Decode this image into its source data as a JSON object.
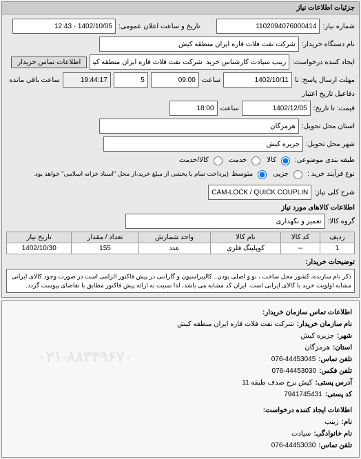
{
  "panel": {
    "title": "جزئیات اطلاعات نیاز"
  },
  "form": {
    "request_no_label": "شماره نیاز:",
    "request_no": "1102094076000414",
    "announce_label": "تاریخ و ساعت اعلان عمومی:",
    "announce_value": "1402/10/05 - 12:43",
    "buyer_org_label": "نام دستگاه خریدار:",
    "buyer_org": "شرکت نفت فلات قاره ایران منطقه کیش",
    "requester_label": "ایجاد کننده درخواست:",
    "requester": "زینب سیادت کارشناس خرید  شرکت نفت قلات قاره ایران منطقه کیش",
    "contact_btn": "اطلاعات تماس خریدار",
    "deadline_label": "مهلت ارسال پاسخ: تا",
    "deadline_date": "1402/10/11",
    "time_label": "ساعت",
    "deadline_time": "09:00",
    "remain_hours": "5",
    "remain_clock": "19:44:17",
    "remain_label": "ساعت باقی مانده",
    "valid_label": "دفاعیل تاریخ اعتبار",
    "quote_to_label": "قیمت: تا تاریخ:",
    "quote_to_date": "1402/12/05",
    "quote_to_time": "18:00",
    "delivery_province_label": "استان محل تحویل:",
    "delivery_province": "هرمزگان",
    "delivery_city_label": "شهر محل تحویل:",
    "delivery_city": "جزیره کیش",
    "category_label": "طبقه بندی موضوعی:",
    "cat_goods": "کالا",
    "cat_service": "خدمت",
    "cat_goods_service": "کالا/خدمت",
    "process_label": "نوع فرآیند خرید :",
    "process_low": "جزیی",
    "process_mid": "متوسط",
    "process_note": "(پرداخت تمام یا بخشی از مبلغ خرید،از محل \"اسناد خزانه اسلامی\" خواهد بود.",
    "need_title_label": "شرح کلی نیاز:",
    "need_title": "CAM-LOCK / QUICK COUPLINGS",
    "goods_section": "اطلاعات کالاهای مورد نیاز",
    "goods_group_label": "گروه کالا:",
    "goods_group": "تعمیر و نگهداری",
    "buyer_desc_label": "توضیحات خریدار:",
    "buyer_desc": "ذکر نام سازنده، کشور محل ساخت ، نو و اصلی بودن . کالیبراسیون و گارانتی در پیش فاکتور الزامی است در صورت وجود کالای ایرانی مشابه اولویت خرید با کالای ایرانی است. ایران کد مشابه می باشد، لذا نسبت به ارائه پیش فاکتور مطابق با تقاضای پیوست گردد."
  },
  "table": {
    "columns": [
      "ردیف",
      "کد کالا",
      "نام کالا",
      "واحد شمارش",
      "تعداد / مقدار",
      "تاریخ نیاز"
    ],
    "rows": [
      [
        "1",
        "--",
        "کوپلینگ فلزی",
        "عدد",
        "155",
        "1402/10/30"
      ]
    ]
  },
  "contact": {
    "panel_title": "اطلاعات تماس سازمان خریدار:",
    "org_label": "نام سازمان خریدار:",
    "org": "شرکت نفت فلات قاره ایران منطقه کیش",
    "city_label": "شهر:",
    "city": "جزیره کیش",
    "province_label": "استان:",
    "province": "هرمزگان",
    "phone_label": "تلفن تماس:",
    "phone": "076-44453045",
    "fax_label": "تلفن فکس:",
    "fax": "076-44453030",
    "address_label": "آدرس پستی:",
    "address": "کیش برج صدف طبقه 11",
    "postal_label": "کد پستی:",
    "postal": "7941745431",
    "req_creator_title": "اطلاعات ایجاد کننده درخواست:",
    "name_label": "نام:",
    "name": "زینب",
    "lastname_label": "نام خانوادگی:",
    "lastname": "سیادت",
    "creator_phone_label": "تلفن تماس:",
    "creator_phone": "076-44453030",
    "watermark": "۰۲۱-۸۸۳۴۹۶۷۰"
  }
}
